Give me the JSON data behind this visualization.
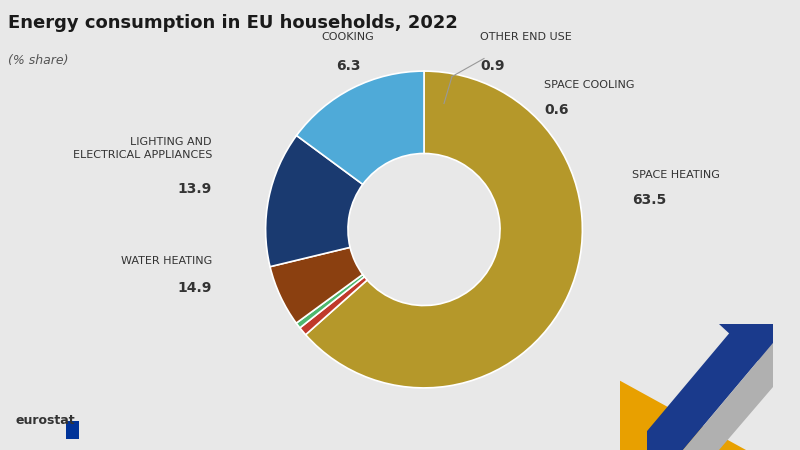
{
  "title": "Energy consumption in EU households, 2022",
  "subtitle": "(% share)",
  "categories": [
    "SPACE HEATING",
    "OTHER END USE",
    "SPACE COOLING",
    "COOKING",
    "LIGHTING AND\nELECTRICAL APPLIANCES",
    "WATER HEATING"
  ],
  "values": [
    63.5,
    0.9,
    0.6,
    6.3,
    13.9,
    14.9
  ],
  "colors": [
    "#b5982a",
    "#c0392b",
    "#4db86e",
    "#8b4010",
    "#1a3a70",
    "#4faad8"
  ],
  "background_color": "#e8e8e8",
  "title_fontsize": 13,
  "subtitle_fontsize": 9,
  "label_fontsize": 8,
  "value_fontsize": 9
}
